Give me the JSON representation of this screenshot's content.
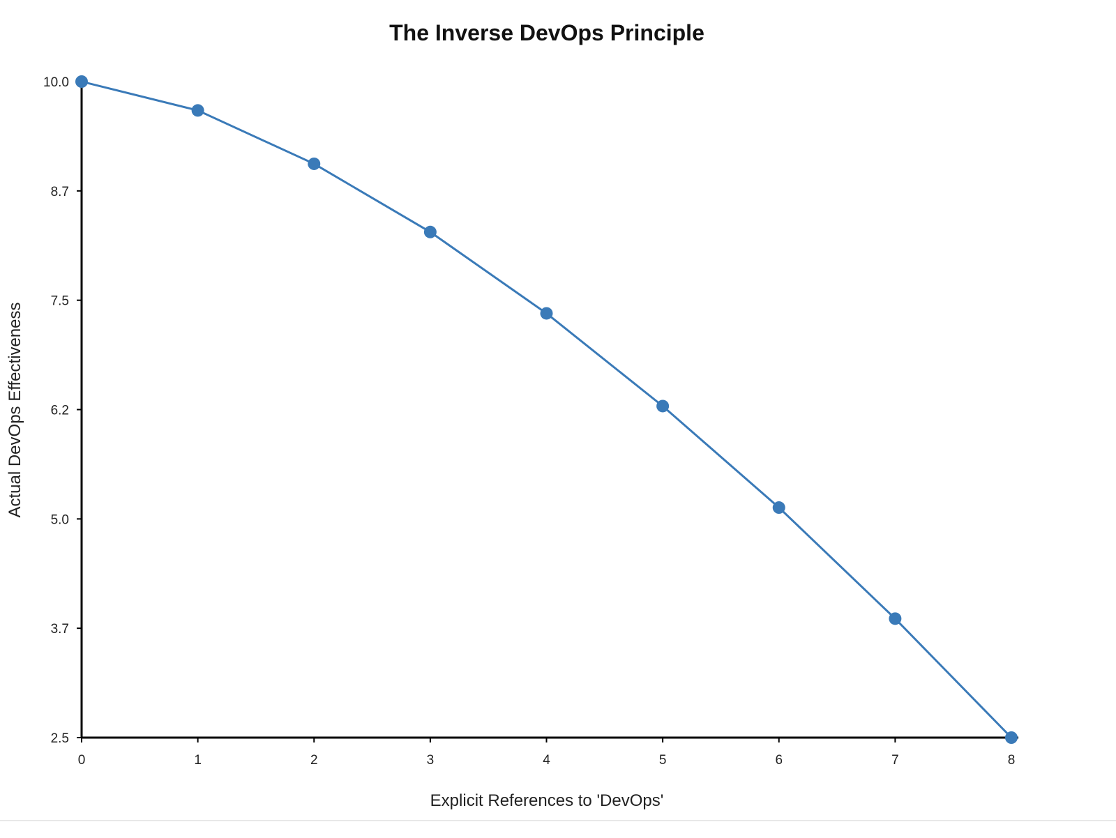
{
  "chart_data": {
    "type": "line",
    "title": "The Inverse DevOps Principle",
    "xlabel": "Explicit References to 'DevOps'",
    "ylabel": "Actual DevOps Effectiveness",
    "x": [
      0,
      1,
      2,
      3,
      4,
      5,
      6,
      7,
      8
    ],
    "series": [
      {
        "values": [
          10.0,
          9.67,
          9.06,
          8.28,
          7.35,
          6.29,
          5.13,
          3.86,
          2.5
        ],
        "color": "#3a7ab8"
      }
    ],
    "xlim": [
      0,
      8
    ],
    "ylim": [
      2.5,
      10.0
    ],
    "xticks": [
      0,
      1,
      2,
      3,
      4,
      5,
      6,
      7,
      8
    ],
    "xtick_labels": [
      "0",
      "1",
      "2",
      "3",
      "4",
      "5",
      "6",
      "7",
      "8"
    ],
    "yticks": [
      2.5,
      3.75,
      5.0,
      6.25,
      7.5,
      8.75,
      10.0
    ],
    "ytick_labels": [
      "2.5",
      "3.7",
      "5.0",
      "6.2",
      "7.5",
      "8.7",
      "10.0"
    ],
    "grid": false,
    "markers": true
  }
}
